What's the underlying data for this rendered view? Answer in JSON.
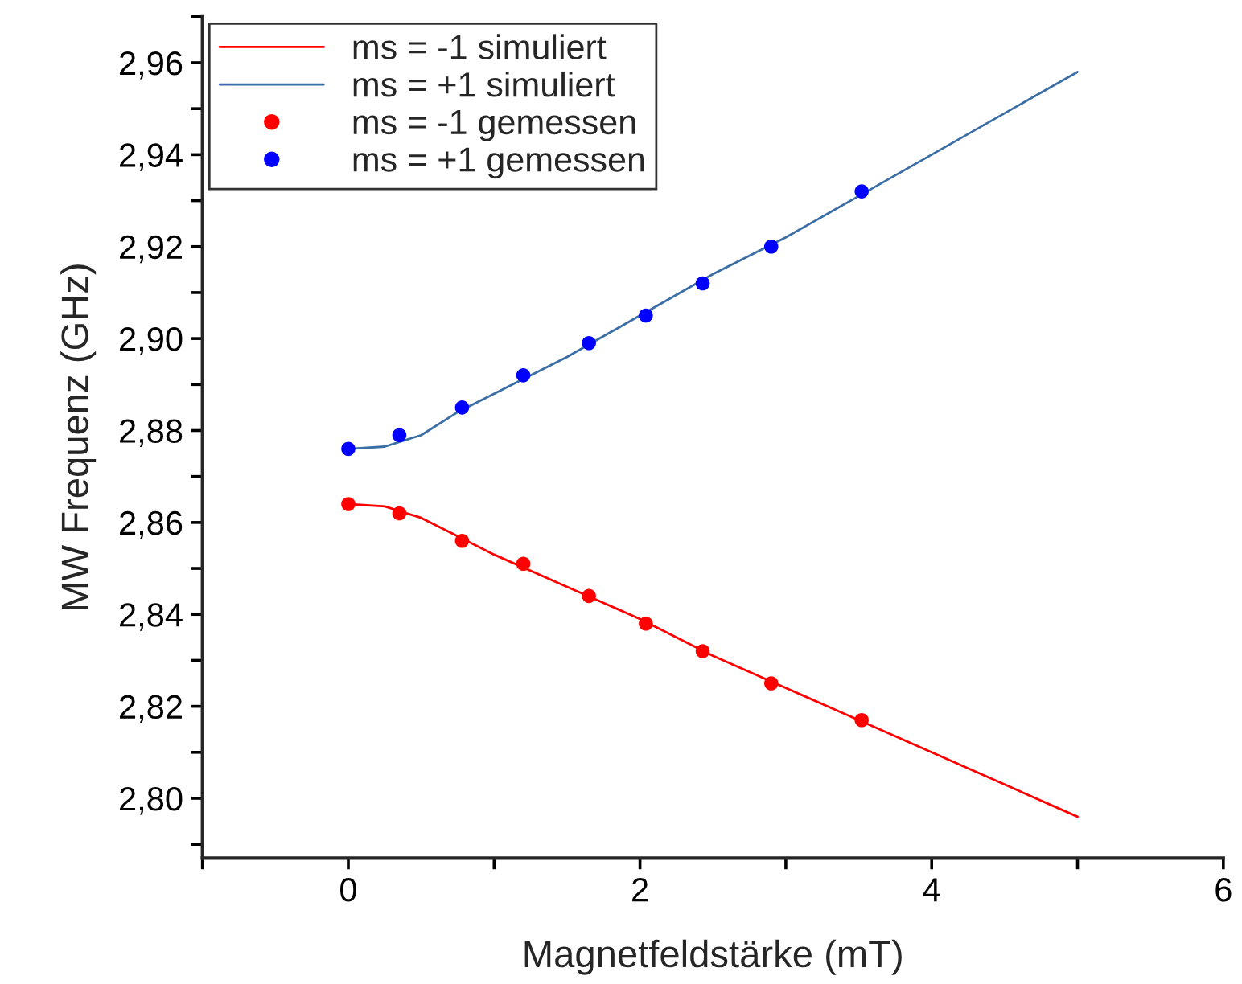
{
  "chart_data": {
    "type": "line",
    "xlabel": "Magnetfeldstärke (mT)",
    "ylabel": "MW Frequenz (GHz)",
    "xlim": [
      -1,
      6
    ],
    "xticks": [
      {
        "value": -1,
        "label": null
      },
      0,
      {
        "value": 1,
        "label": null
      },
      2,
      {
        "value": 3,
        "label": null
      },
      4,
      {
        "value": 5,
        "label": null
      },
      6
    ],
    "ylim": [
      2.787,
      2.97
    ],
    "yticks": [
      {
        "value": 2.79,
        "label": null
      },
      {
        "value": 2.8,
        "label": "2,80"
      },
      {
        "value": 2.81,
        "label": null
      },
      {
        "value": 2.82,
        "label": "2,82"
      },
      {
        "value": 2.83,
        "label": null
      },
      {
        "value": 2.84,
        "label": "2,84"
      },
      {
        "value": 2.85,
        "label": null
      },
      {
        "value": 2.86,
        "label": "2,86"
      },
      {
        "value": 2.87,
        "label": null
      },
      {
        "value": 2.88,
        "label": "2,88"
      },
      {
        "value": 2.89,
        "label": null
      },
      {
        "value": 2.9,
        "label": "2,90"
      },
      {
        "value": 2.91,
        "label": null
      },
      {
        "value": 2.92,
        "label": "2,92"
      },
      {
        "value": 2.93,
        "label": null
      },
      {
        "value": 2.94,
        "label": "2,94"
      },
      {
        "value": 2.95,
        "label": null
      },
      {
        "value": 2.96,
        "label": "2,96"
      },
      {
        "value": 2.97,
        "label": null
      }
    ],
    "grid": false,
    "legend": "top left",
    "series": [
      {
        "name": "ms = -1 simuliert",
        "color": "#ff0000",
        "marker": "none",
        "x": [
          0,
          0.25,
          0.5,
          0.75,
          1,
          1.5,
          2,
          2.5,
          3,
          3.5,
          4,
          4.5,
          5
        ],
        "values": [
          2.864,
          2.8635,
          2.861,
          2.857,
          2.853,
          2.846,
          2.839,
          2.831,
          2.824,
          2.817,
          2.81,
          2.803,
          2.796
        ]
      },
      {
        "name": "ms = +1 simuliert",
        "color": "#3a6ea5",
        "marker": "none",
        "x": [
          0,
          0.25,
          0.5,
          0.75,
          1,
          1.5,
          2,
          2.5,
          3,
          3.5,
          4,
          4.5,
          5
        ],
        "values": [
          2.876,
          2.8765,
          2.879,
          2.884,
          2.888,
          2.896,
          2.905,
          2.914,
          2.922,
          2.931,
          2.94,
          2.949,
          2.958
        ]
      },
      {
        "name": "ms = -1 gemessen",
        "type": "scatter",
        "color": "#ff0000",
        "marker": "circle",
        "x": [
          0,
          0.35,
          0.78,
          1.2,
          1.65,
          2.04,
          2.43,
          2.9,
          3.52
        ],
        "values": [
          2.864,
          2.862,
          2.856,
          2.851,
          2.844,
          2.838,
          2.832,
          2.825,
          2.817
        ]
      },
      {
        "name": "ms = +1 gemessen",
        "type": "scatter",
        "color": "#0000ff",
        "marker": "circle",
        "x": [
          0,
          0.35,
          0.78,
          1.2,
          1.65,
          2.04,
          2.43,
          2.9,
          3.52
        ],
        "values": [
          2.876,
          2.879,
          2.885,
          2.892,
          2.899,
          2.905,
          2.912,
          2.92,
          2.932
        ]
      }
    ]
  }
}
